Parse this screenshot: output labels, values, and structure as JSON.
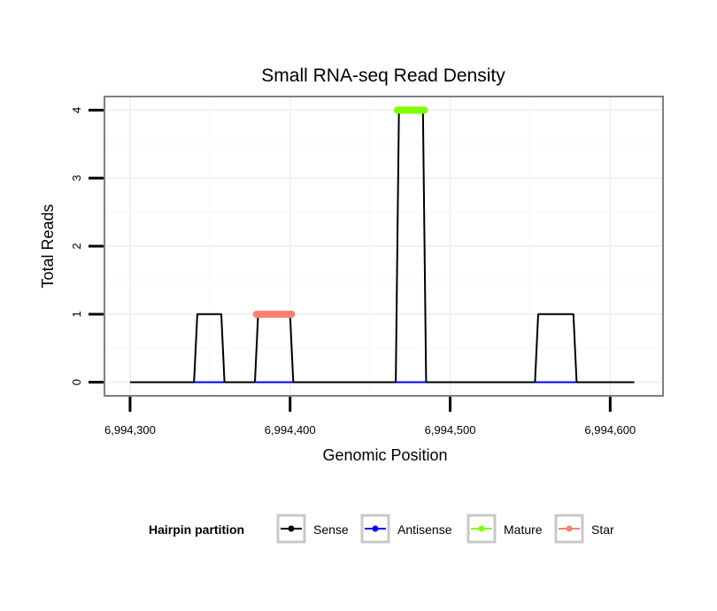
{
  "chart_data": {
    "type": "line",
    "title": "Small RNA-seq Read Density",
    "xlabel": "Genomic Position",
    "ylabel": "Total Reads",
    "xlim": [
      6994284,
      6994633
    ],
    "ylim": [
      -0.2,
      4.2
    ],
    "x_ticks": [
      6994300,
      6994400,
      6994500,
      6994600
    ],
    "x_tick_labels": [
      "6,994,300",
      "6,994,400",
      "6,994,500",
      "6,994,600"
    ],
    "y_ticks": [
      0,
      1,
      2,
      3,
      4
    ],
    "y_tick_labels": [
      "0",
      "1",
      "2",
      "3",
      "4"
    ],
    "grid": true,
    "legend": {
      "title": "Hairpin partition",
      "position": "bottom",
      "entries": [
        "Sense",
        "Antisense",
        "Mature",
        "Star"
      ]
    },
    "series": [
      {
        "name": "Sense",
        "color": "#000000",
        "x": [
          6994300,
          6994340,
          6994342,
          6994357,
          6994359,
          6994378,
          6994380,
          6994400,
          6994402,
          6994466,
          6994468,
          6994483,
          6994485,
          6994553,
          6994555,
          6994577,
          6994579,
          6994615
        ],
        "values": [
          0,
          0,
          1,
          1,
          0,
          0,
          1,
          1,
          0,
          0,
          4,
          4,
          0,
          0,
          1,
          1,
          0,
          0
        ]
      },
      {
        "name": "Antisense",
        "color": "#0000ff",
        "x": [
          6994340,
          6994359,
          6994378,
          6994402,
          6994466,
          6994485,
          6994553,
          6994579
        ],
        "values": [
          0,
          0,
          0,
          0,
          0,
          0,
          0,
          0
        ],
        "segments": [
          [
            0,
            1
          ],
          [
            2,
            3
          ],
          [
            4,
            5
          ],
          [
            6,
            7
          ]
        ]
      },
      {
        "name": "Mature",
        "color": "#7fff00",
        "x": [
          6994467,
          6994484
        ],
        "values": [
          4,
          4
        ]
      },
      {
        "name": "Star",
        "color": "#fa8072",
        "x": [
          6994379,
          6994401
        ],
        "values": [
          1,
          1
        ]
      }
    ]
  }
}
